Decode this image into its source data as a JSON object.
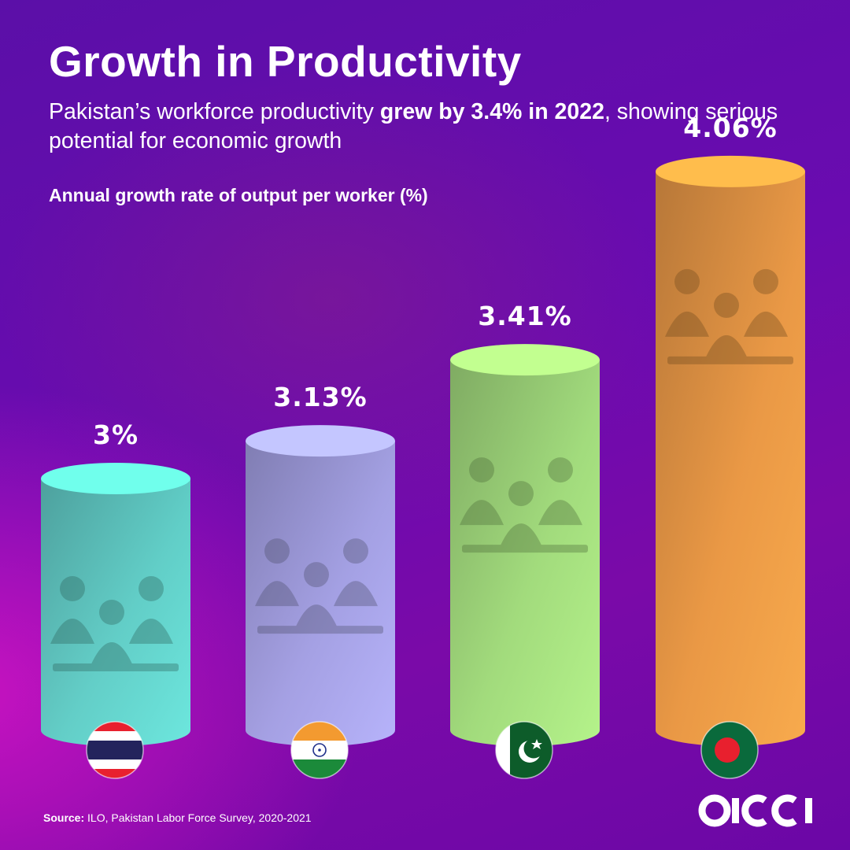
{
  "title": "Growth in Productivity",
  "subtitle": {
    "before": "Pakistan’s workforce productivity ",
    "bold": "grew by 3.4% in 2022",
    "after": ", showing serious potential for economic growth"
  },
  "source": {
    "label": "Source:",
    "text": " ILO, Pakistan Labor Force Survey, 2020-2021"
  },
  "logo": {
    "text": "oicci"
  },
  "colors": {
    "background": "#6a0bb0",
    "thailand_bar": "#5fd8c8",
    "india_bar": "#a6a8e6",
    "pakistan_bar": "#a4e67a",
    "bangladesh_bar": "#f0a040"
  },
  "chart_data": {
    "type": "bar",
    "title": "Annual growth rate of output per worker (%)",
    "categories": [
      "Thailand",
      "India",
      "Pakistan",
      "Bangladesh"
    ],
    "values": [
      3,
      3.13,
      3.41,
      4.06
    ],
    "data_labels": [
      "3%",
      "3.13%",
      "3.41%",
      "4.06%"
    ],
    "category_icons": [
      "thailand-flag-icon",
      "india-flag-icon",
      "pakistan-flag-icon",
      "bangladesh-flag-icon"
    ],
    "xlabel": "",
    "ylabel": "",
    "grid": false,
    "legend": "none"
  }
}
